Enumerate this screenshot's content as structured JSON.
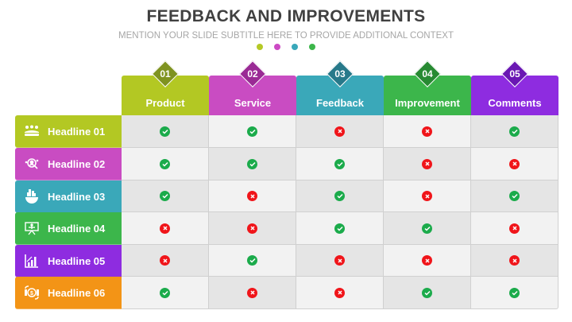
{
  "header": {
    "title": "FEEDBACK AND IMPROVEMENTS",
    "subtitle": "MENTION YOUR SLIDE SUBTITLE HERE TO PROVIDE ADDITIONAL CONTEXT",
    "dot_colors": [
      "#b5c926",
      "#cc4ac4",
      "#39a8ba",
      "#3cb64a"
    ]
  },
  "columns": [
    {
      "num": "01",
      "label": "Product",
      "color": "#b3c823",
      "dark": "#7f9320"
    },
    {
      "num": "02",
      "label": "Service",
      "color": "#c94cc2",
      "dark": "#9a2a95"
    },
    {
      "num": "03",
      "label": "Feedback",
      "color": "#3aa8b9",
      "dark": "#27798a"
    },
    {
      "num": "04",
      "label": "Improvement",
      "color": "#3cb64b",
      "dark": "#278a32"
    },
    {
      "num": "05",
      "label": "Comments",
      "color": "#8e2ce0",
      "dark": "#6a17b3"
    }
  ],
  "rows": [
    {
      "label": "Headline 01",
      "icon": "team-meeting-icon",
      "color": "#b3c823",
      "values": [
        "yes",
        "yes",
        "no",
        "no",
        "yes"
      ]
    },
    {
      "label": "Headline 02",
      "icon": "user-search-icon",
      "color": "#c94cc2",
      "values": [
        "yes",
        "yes",
        "yes",
        "no",
        "no"
      ]
    },
    {
      "label": "Headline 03",
      "icon": "city-globe-icon",
      "color": "#3aa8b9",
      "values": [
        "yes",
        "no",
        "yes",
        "no",
        "yes"
      ]
    },
    {
      "label": "Headline 04",
      "icon": "presentation-board-icon",
      "color": "#3cb64b",
      "values": [
        "no",
        "no",
        "yes",
        "yes",
        "no"
      ]
    },
    {
      "label": "Headline 05",
      "icon": "bar-chart-growth-icon",
      "color": "#8e2ce0",
      "values": [
        "no",
        "yes",
        "no",
        "no",
        "no"
      ]
    },
    {
      "label": "Headline 06",
      "icon": "money-exchange-icon",
      "color": "#f39416",
      "values": [
        "yes",
        "no",
        "no",
        "yes",
        "yes"
      ]
    }
  ],
  "legend": {
    "yes": "check-icon",
    "no": "cross-icon"
  }
}
